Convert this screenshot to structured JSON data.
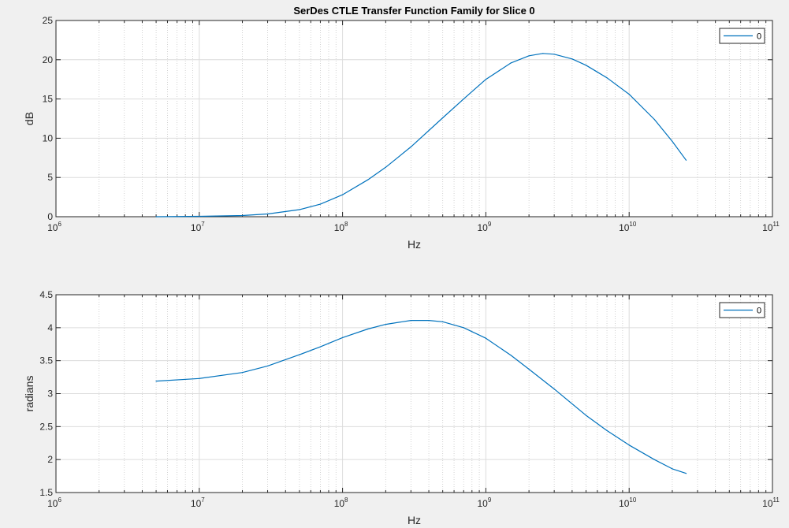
{
  "chart_data": [
    {
      "type": "line",
      "title": "SerDes CTLE Transfer Function Family for Slice 0",
      "xlabel": "Hz",
      "ylabel": "dB",
      "xscale": "log",
      "xlim": [
        1000000,
        100000000000
      ],
      "ylim": [
        0,
        25
      ],
      "yticks": [
        0,
        5,
        10,
        15,
        20,
        25
      ],
      "xticks": [
        {
          "base": "10",
          "exp": "6"
        },
        {
          "base": "10",
          "exp": "7"
        },
        {
          "base": "10",
          "exp": "8"
        },
        {
          "base": "10",
          "exp": "9"
        },
        {
          "base": "10",
          "exp": "10"
        },
        {
          "base": "10",
          "exp": "11"
        }
      ],
      "grid": true,
      "minor_grid": true,
      "legend": {
        "position": "top-right",
        "entries": [
          "0"
        ]
      },
      "series": [
        {
          "name": "0",
          "color": "#0072bd",
          "x": [
            5000000,
            10000000,
            20000000,
            30000000,
            50000000,
            70000000,
            100000000,
            150000000,
            200000000,
            300000000,
            500000000,
            700000000,
            1000000000,
            1500000000,
            2000000000,
            2500000000,
            3000000000,
            4000000000,
            5000000000,
            7000000000,
            10000000000,
            15000000000,
            20000000000,
            25000000000
          ],
          "y": [
            0.0,
            0.05,
            0.15,
            0.35,
            0.9,
            1.6,
            2.8,
            4.7,
            6.3,
            8.9,
            12.6,
            15.0,
            17.5,
            19.6,
            20.5,
            20.8,
            20.7,
            20.1,
            19.3,
            17.7,
            15.6,
            12.4,
            9.6,
            7.2
          ]
        }
      ]
    },
    {
      "type": "line",
      "title": "",
      "xlabel": "Hz",
      "ylabel": "radians",
      "xscale": "log",
      "xlim": [
        1000000,
        100000000000
      ],
      "ylim": [
        1.5,
        4.5
      ],
      "yticks": [
        1.5,
        2,
        2.5,
        3,
        3.5,
        4,
        4.5
      ],
      "xticks": [
        {
          "base": "10",
          "exp": "6"
        },
        {
          "base": "10",
          "exp": "7"
        },
        {
          "base": "10",
          "exp": "8"
        },
        {
          "base": "10",
          "exp": "9"
        },
        {
          "base": "10",
          "exp": "10"
        },
        {
          "base": "10",
          "exp": "11"
        }
      ],
      "grid": true,
      "minor_grid": true,
      "legend": {
        "position": "top-right",
        "entries": [
          "0"
        ]
      },
      "series": [
        {
          "name": "0",
          "color": "#0072bd",
          "x": [
            5000000,
            10000000,
            20000000,
            30000000,
            50000000,
            70000000,
            100000000,
            150000000,
            200000000,
            300000000,
            400000000,
            500000000,
            700000000,
            1000000000,
            1500000000,
            2000000000,
            3000000000,
            5000000000,
            7000000000,
            10000000000,
            15000000000,
            20000000000,
            25000000000
          ],
          "y": [
            3.19,
            3.23,
            3.32,
            3.42,
            3.59,
            3.71,
            3.85,
            3.98,
            4.05,
            4.11,
            4.11,
            4.09,
            4.0,
            3.84,
            3.58,
            3.37,
            3.07,
            2.67,
            2.44,
            2.22,
            2.0,
            1.86,
            1.79
          ]
        }
      ]
    }
  ]
}
